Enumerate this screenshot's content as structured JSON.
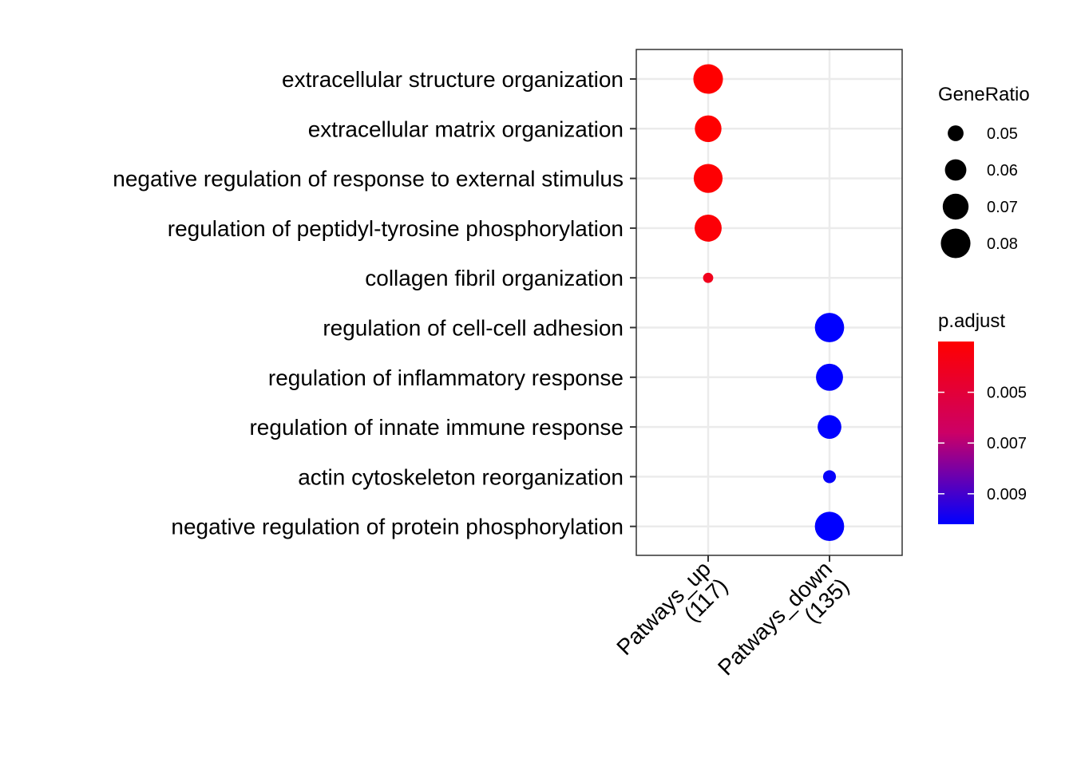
{
  "chart_data": {
    "type": "scatter",
    "subtype": "dot-plot",
    "title": "",
    "xlabel": "",
    "ylabel": "",
    "categories_x": [
      {
        "id": "up",
        "lines": [
          "Patways_up",
          "(117)"
        ]
      },
      {
        "id": "down",
        "lines": [
          "Patways_down",
          "(135)"
        ]
      }
    ],
    "categories_y": [
      "extracellular structure organization",
      "extracellular matrix organization",
      "negative regulation of response to external stimulus",
      "regulation of peptidyl-tyrosine phosphorylation",
      "collagen fibril organization",
      "regulation of cell-cell adhesion",
      "regulation of inflammatory response",
      "regulation of innate immune response",
      "actin cytoskeleton reorganization",
      "negative regulation of protein phosphorylation"
    ],
    "points": [
      {
        "x": "up",
        "y": "extracellular structure organization",
        "gene_ratio": 0.08,
        "p_adjust": 0.003
      },
      {
        "x": "up",
        "y": "extracellular matrix organization",
        "gene_ratio": 0.072,
        "p_adjust": 0.003
      },
      {
        "x": "up",
        "y": "negative regulation of response to external stimulus",
        "gene_ratio": 0.078,
        "p_adjust": 0.0031
      },
      {
        "x": "up",
        "y": "regulation of peptidyl-tyrosine phosphorylation",
        "gene_ratio": 0.073,
        "p_adjust": 0.0032
      },
      {
        "x": "up",
        "y": "collagen fibril organization",
        "gene_ratio": 0.043,
        "p_adjust": 0.004
      },
      {
        "x": "down",
        "y": "regulation of cell-cell adhesion",
        "gene_ratio": 0.079,
        "p_adjust": 0.0102
      },
      {
        "x": "down",
        "y": "regulation of inflammatory response",
        "gene_ratio": 0.073,
        "p_adjust": 0.0102
      },
      {
        "x": "down",
        "y": "regulation of innate immune response",
        "gene_ratio": 0.065,
        "p_adjust": 0.0102
      },
      {
        "x": "down",
        "y": "actin cytoskeleton reorganization",
        "gene_ratio": 0.046,
        "p_adjust": 0.0101
      },
      {
        "x": "down",
        "y": "negative regulation of protein phosphorylation",
        "gene_ratio": 0.079,
        "p_adjust": 0.0102
      }
    ],
    "size_legend": {
      "title": "GeneRatio",
      "entries": [
        {
          "value": 0.05,
          "label": "0.05"
        },
        {
          "value": 0.06,
          "label": "0.06"
        },
        {
          "value": 0.07,
          "label": "0.07"
        },
        {
          "value": 0.08,
          "label": "0.08"
        }
      ]
    },
    "color_legend": {
      "title": "p.adjust",
      "range": [
        0.003,
        0.0102
      ],
      "low_color": "#ff0000",
      "high_color": "#0000ff",
      "ticks": [
        {
          "value": 0.005,
          "label": "0.005"
        },
        {
          "value": 0.007,
          "label": "0.007"
        },
        {
          "value": 0.009,
          "label": "0.009"
        }
      ]
    },
    "grid": true,
    "legend_position": "right"
  }
}
